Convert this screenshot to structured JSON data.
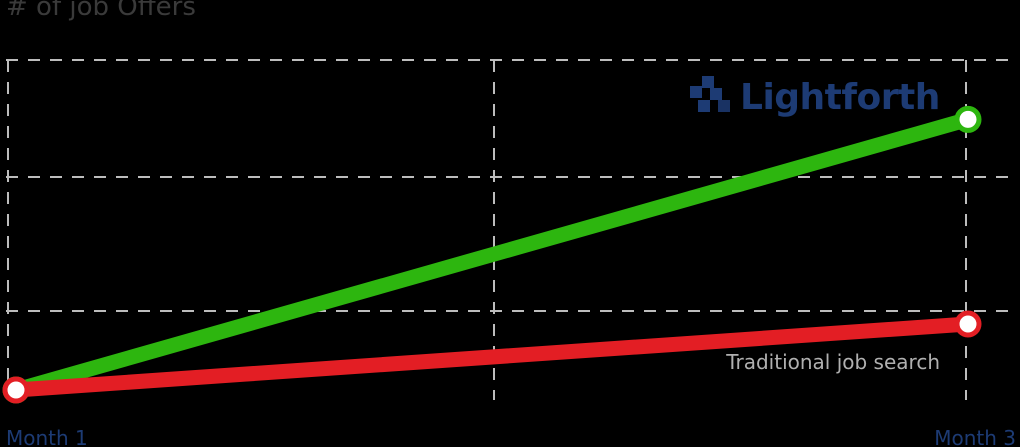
{
  "chart_data": {
    "type": "line",
    "title": "",
    "ylabel": "# of job Offers",
    "xlabel": "",
    "categories": [
      "Month 1",
      "Month 3"
    ],
    "x_ticks": [
      "Month 1",
      "Month 3"
    ],
    "series": [
      {
        "name": "",
        "values": [
          0,
          4.1
        ],
        "color": "#2db60f"
      },
      {
        "name": "Traditional job search",
        "values": [
          0,
          1.0
        ],
        "color": "#e31e24"
      }
    ],
    "ylim": [
      0,
      5
    ],
    "grid": true,
    "legend": "none",
    "colors": {
      "x_tick": "#1d3b74",
      "axis_label": "#3a3a3a",
      "grid": "#bdbdbd",
      "brand": "#1d3b74"
    }
  },
  "brand": {
    "name": "Lightforth",
    "icon": "lightforth-logo-icon"
  }
}
